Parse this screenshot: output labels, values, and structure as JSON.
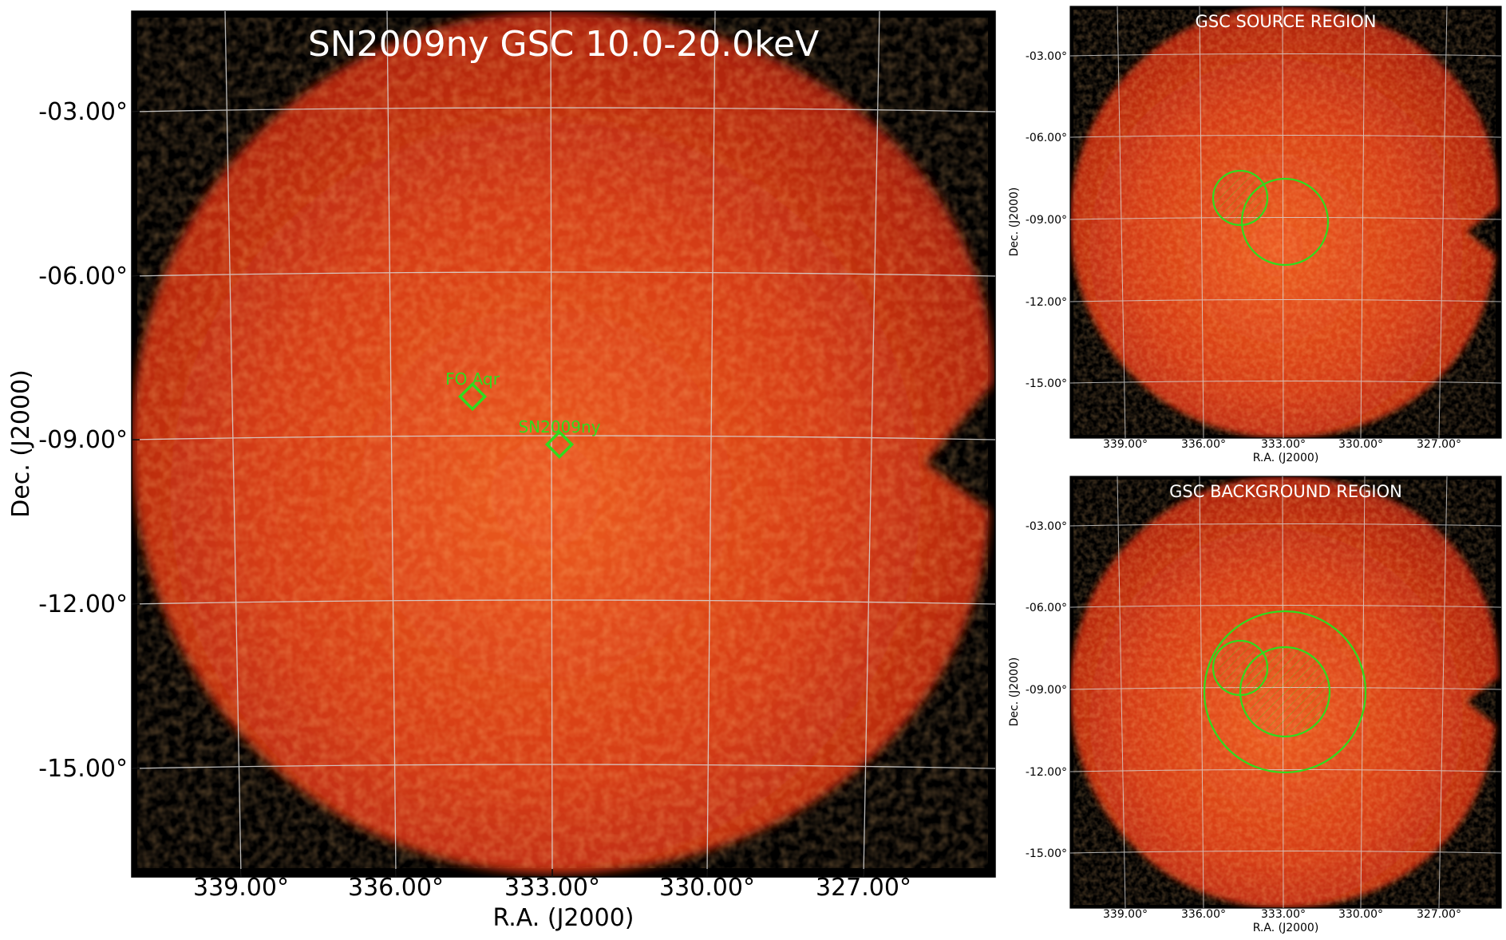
{
  "main_panel": {
    "title": "SN2009ny GSC 10.0-20.0keV",
    "xlabel": "R.A. (J2000)",
    "ylabel": "Dec. (J2000)",
    "xticks": [
      "339.00°",
      "336.00°",
      "333.00°",
      "330.00°",
      "327.00°"
    ],
    "yticks": [
      "-03.00°",
      "-06.00°",
      "-09.00°",
      "-12.00°",
      "-15.00°"
    ],
    "markers": [
      {
        "label": "FO Aqr",
        "shape": "diamond"
      },
      {
        "label": "SN2009ny",
        "shape": "diamond"
      }
    ]
  },
  "source_panel": {
    "title": "GSC SOURCE REGION",
    "xlabel": "R.A. (J2000)",
    "ylabel": "Dec. (J2000)",
    "xticks": [
      "339.00°",
      "336.00°",
      "333.00°",
      "330.00°",
      "327.00°"
    ],
    "yticks": [
      "-03.00°",
      "-06.00°",
      "-09.00°",
      "-12.00°",
      "-15.00°"
    ]
  },
  "background_panel": {
    "title": "GSC BACKGROUND REGION",
    "xlabel": "R.A. (J2000)",
    "ylabel": "Dec. (J2000)",
    "xticks": [
      "339.00°",
      "336.00°",
      "333.00°",
      "330.00°",
      "327.00°"
    ],
    "yticks": [
      "-03.00°",
      "-06.00°",
      "-09.00°",
      "-12.00°",
      "-15.00°"
    ]
  },
  "colors": {
    "sky_bright": "#e8501a",
    "sky_dim": "#a51c0c",
    "background": "#000000",
    "region_green": "#2fdc1e",
    "grid": "#d8d8d8"
  }
}
